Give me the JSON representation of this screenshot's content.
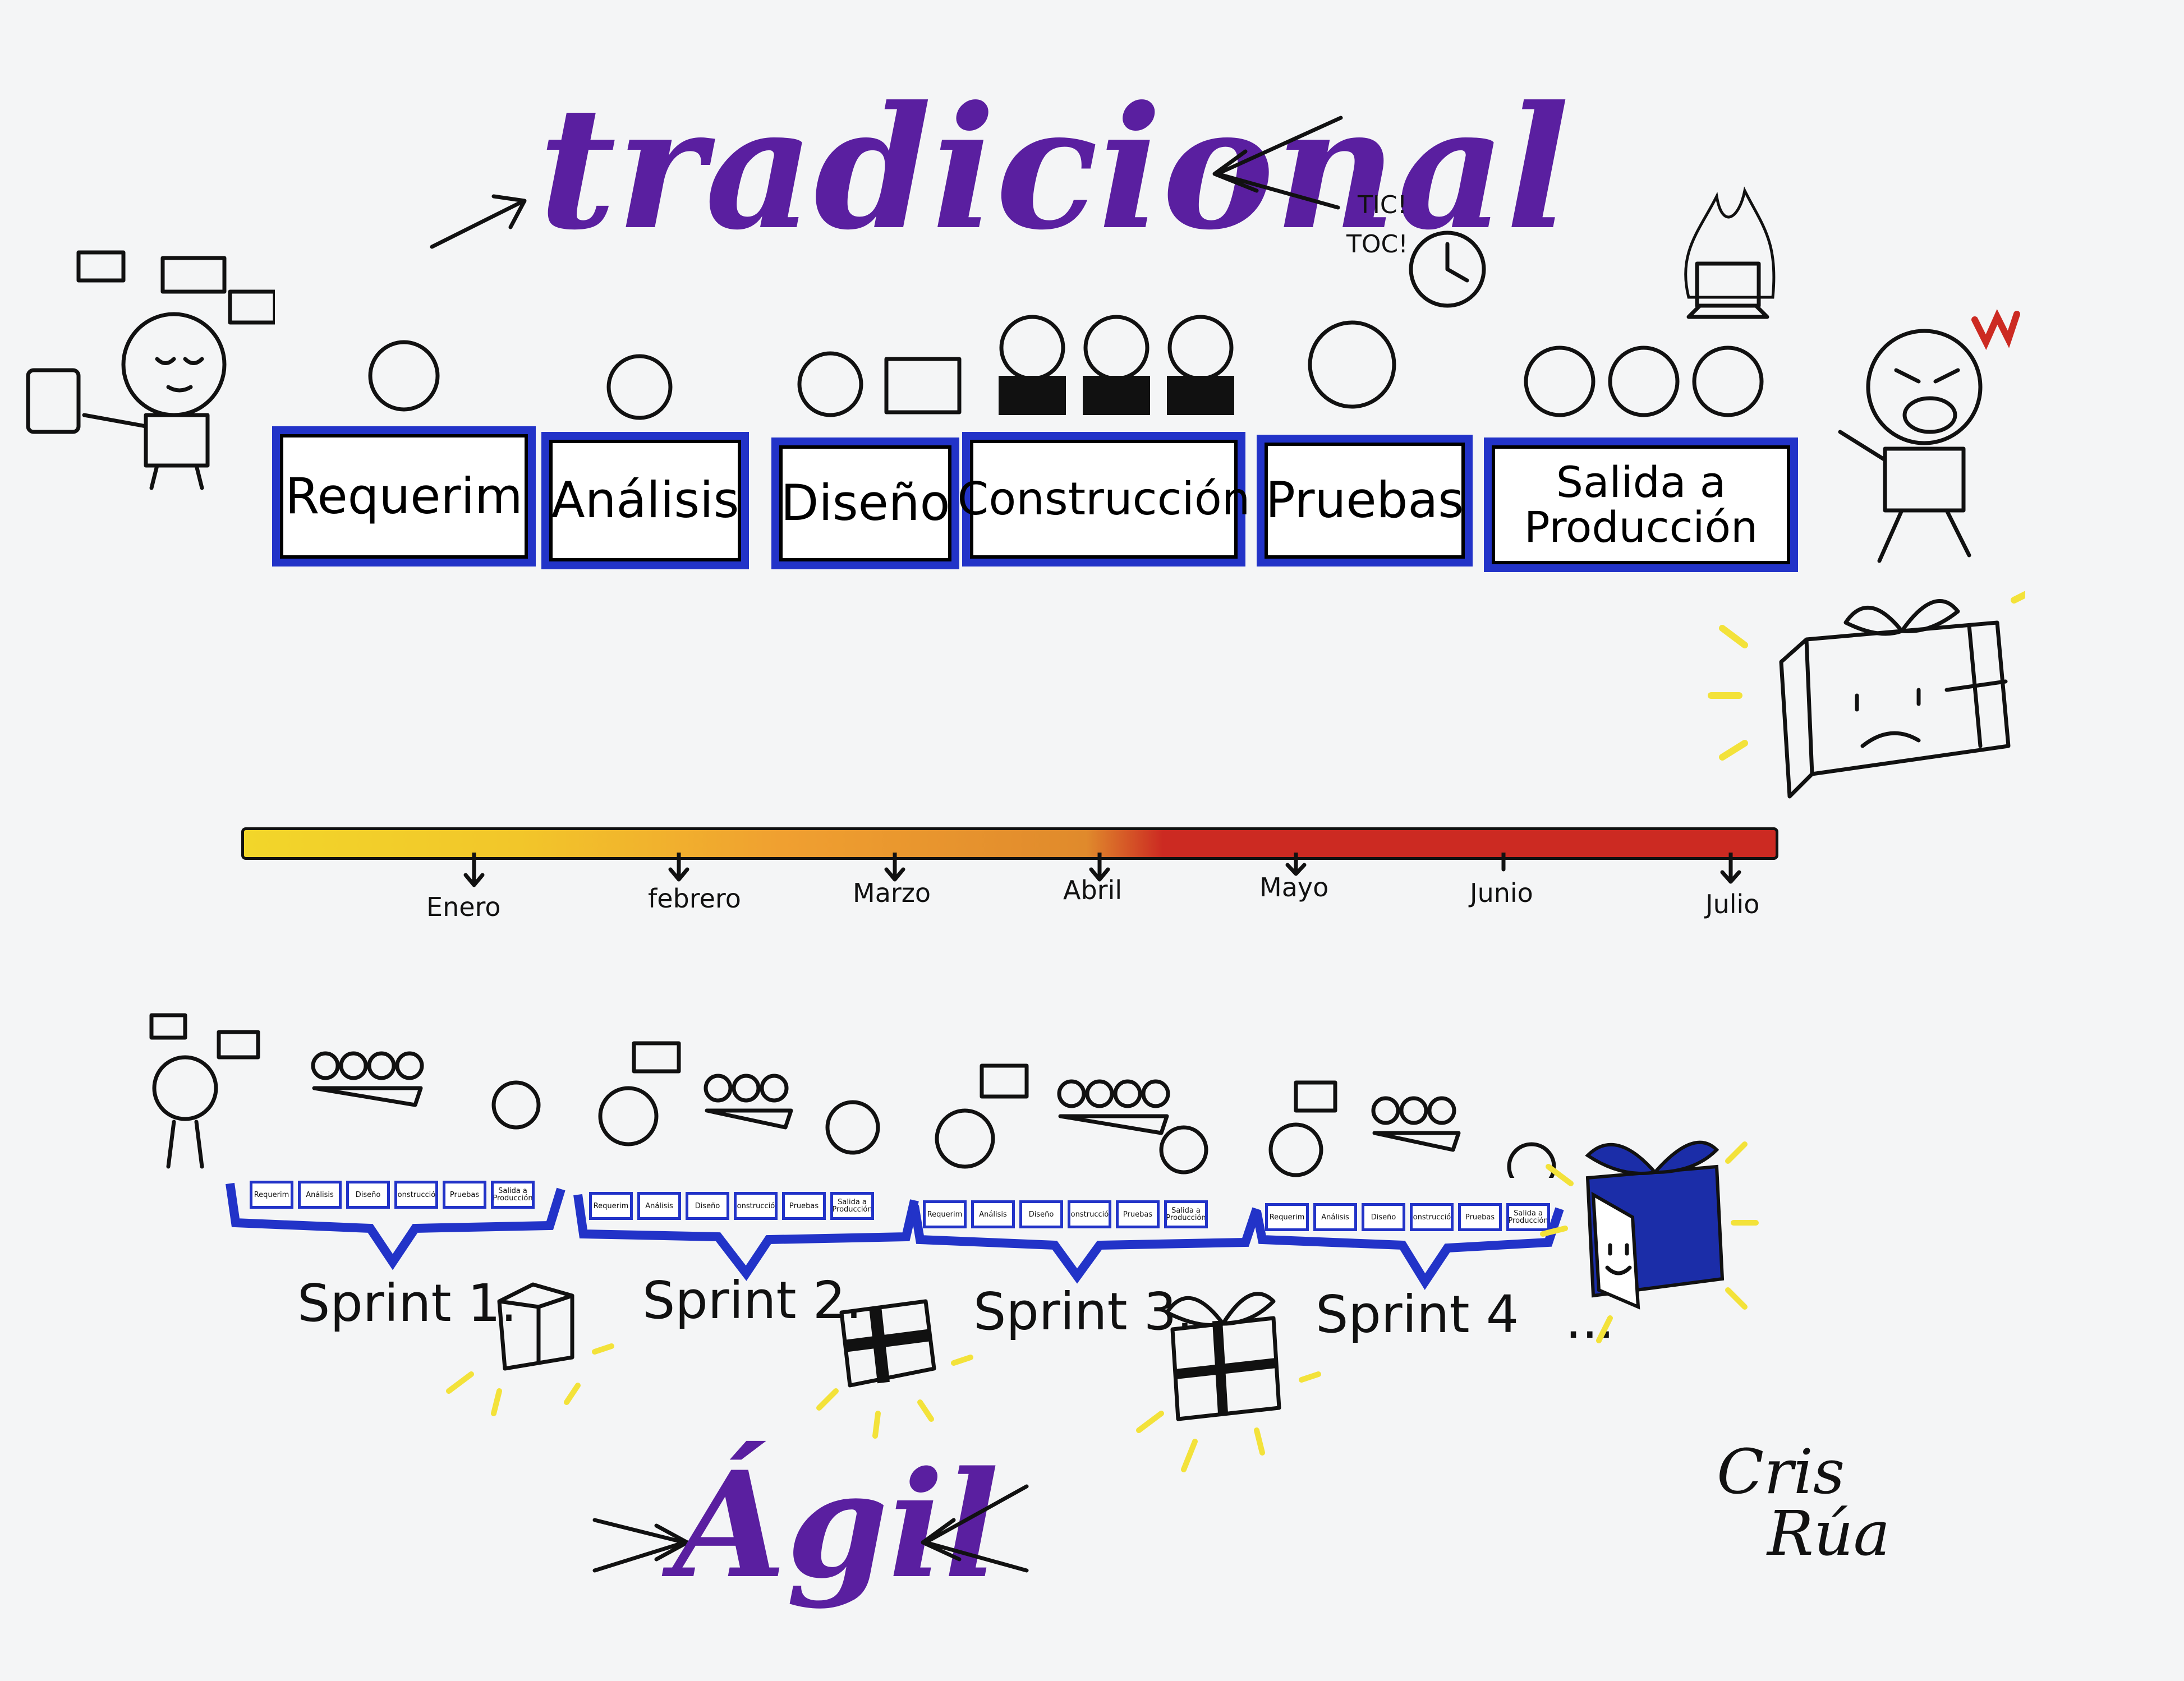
{
  "titles": {
    "top": "tradicional",
    "bottom": "Ágil"
  },
  "phases": [
    "Requerim",
    "Análisis",
    "Diseño",
    "Construcción",
    "Pruebas",
    "Salida a Producción"
  ],
  "sound": {
    "tic": "TIC!",
    "toc": "TOC!"
  },
  "months": [
    "Enero",
    "febrero",
    "Marzo",
    "Abril",
    "Mayo",
    "Junio",
    "Julio"
  ],
  "mini_phases": [
    "Requerim",
    "Análisis",
    "Diseño",
    "Construcción",
    "Pruebas",
    "Salida a Producción"
  ],
  "sprints": [
    "Sprint 1.",
    "Sprint 2.",
    "Sprint 3.",
    "Sprint 4",
    "..."
  ],
  "signature": {
    "line1": "Cris",
    "line2": "Rúa"
  },
  "colors": {
    "title": "#5a1fa0",
    "box_border": "#2233c8",
    "timeline_start": "#f2d62a",
    "timeline_mid": "#f0a030",
    "timeline_end": "#cc2a22",
    "sparkle": "#f3e23a"
  }
}
